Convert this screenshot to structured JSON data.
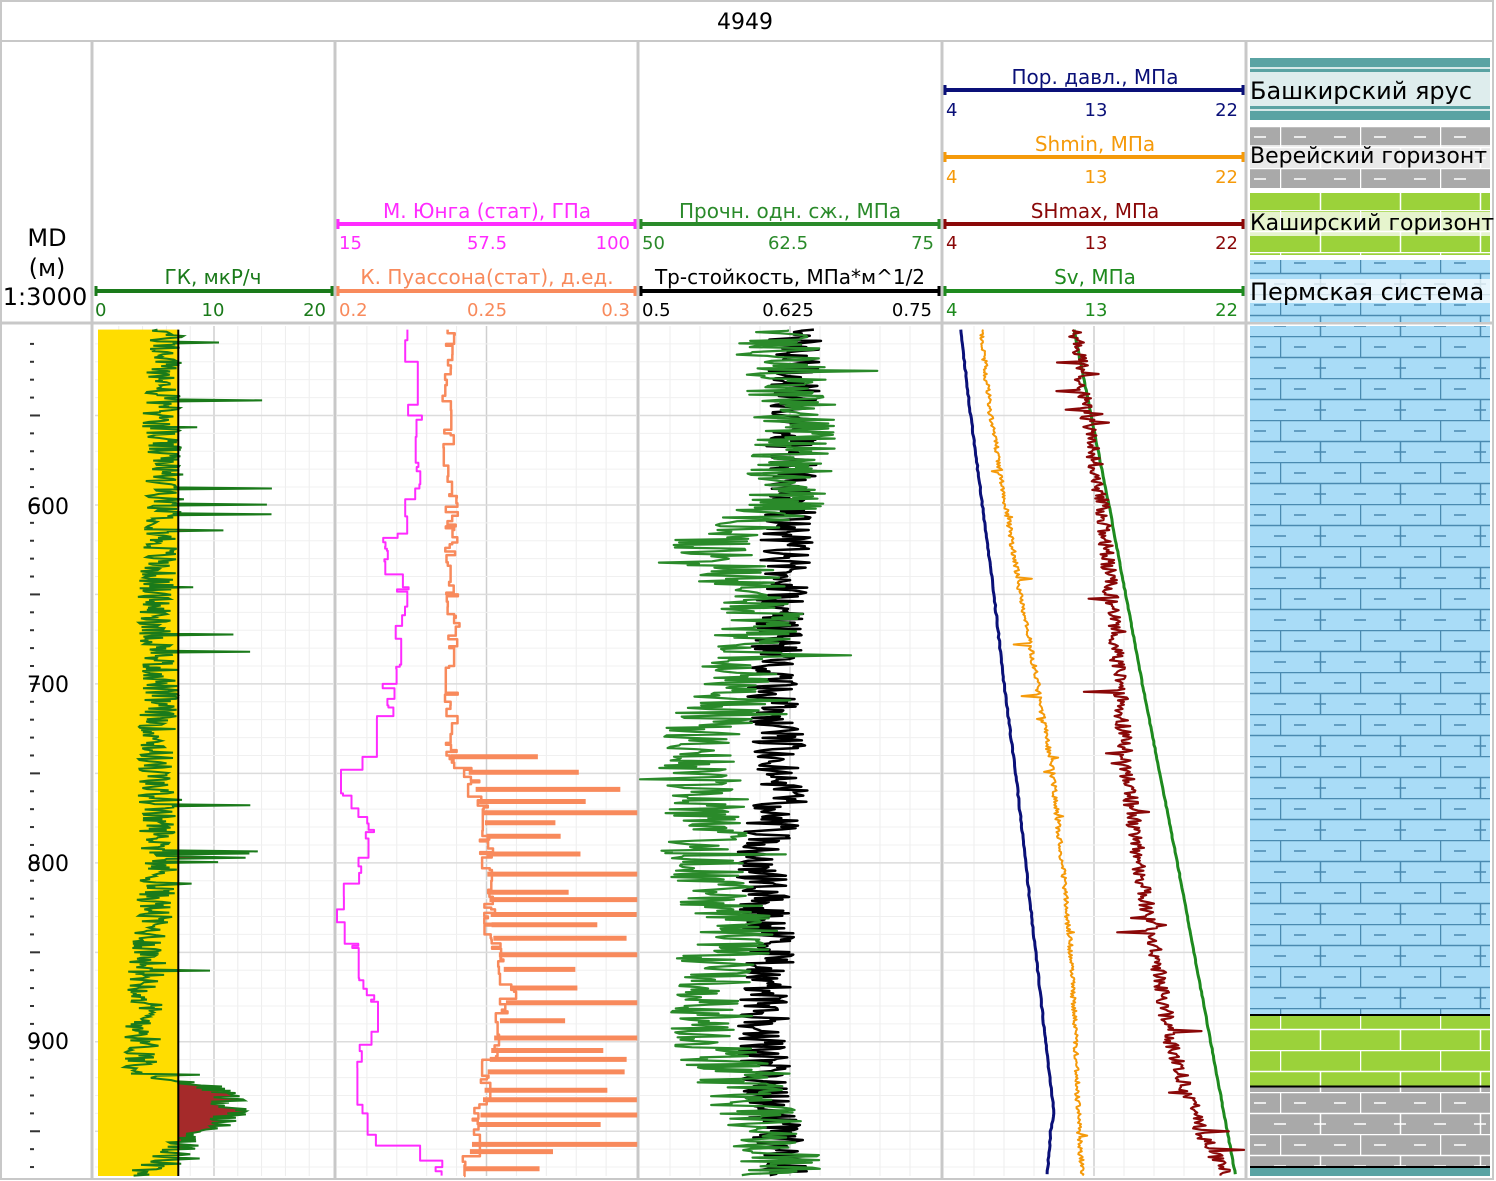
{
  "well": {
    "name": "4949"
  },
  "depth_track": {
    "label_line1": "MD",
    "label_line2": "(м)",
    "scale": "1:3000",
    "ticks": [
      "600",
      "700",
      "800",
      "900"
    ]
  },
  "colors": {
    "gk": "#1a7a1a",
    "young": "#ff2bff",
    "poisson": "#f88a5c",
    "ucs": "#2a8a2a",
    "kic": "#000000",
    "pore": "#0a1078",
    "shmin": "#f59a0a",
    "shmax": "#8a0808",
    "sv": "#1e8a1e",
    "sand_fill": "#ffdd00",
    "shale_fill": "#a52a2a"
  },
  "tracks": {
    "gk": {
      "curve": "ГК, мкР/ч",
      "ticks": [
        "0",
        "10",
        "20"
      ]
    },
    "elastic": {
      "young": {
        "curve": "М. Юнга (стат), ГПа",
        "ticks": [
          "15",
          "57.5",
          "100"
        ]
      },
      "poisson": {
        "curve": "К. Пуассона(стат), д.ед.",
        "ticks": [
          "0.2",
          "0.25",
          "0.3"
        ]
      }
    },
    "strength": {
      "ucs": {
        "curve": "Прочн. одн. сж., МПа",
        "ticks": [
          "50",
          "62.5",
          "75"
        ]
      },
      "kic": {
        "curve": "Тр-стойкость, МПа*м^1/2",
        "ticks": [
          "0.5",
          "0.625",
          "0.75"
        ]
      }
    },
    "stress": {
      "pore": {
        "curve": "Пор. давл., МПа",
        "ticks": [
          "4",
          "13",
          "22"
        ]
      },
      "shmin": {
        "curve": "Shmin, МПа",
        "ticks": [
          "4",
          "13",
          "22"
        ]
      },
      "shmax": {
        "curve": "SHmax, МПа",
        "ticks": [
          "4",
          "13",
          "22"
        ]
      },
      "sv": {
        "curve": "Sv, МПа",
        "ticks": [
          "4",
          "13",
          "22"
        ]
      }
    },
    "lithology": {
      "legend": [
        "Башкирский ярус",
        "Верейский горизонт",
        "Каширский горизонт",
        "Пермская система"
      ]
    }
  },
  "chart_data": {
    "type": "line",
    "depth_unit": "м",
    "depth_range": [
      500,
      975
    ],
    "gk_cutoff": 7,
    "series": [
      {
        "name": "ГК, мкР/ч",
        "xlim": [
          0,
          20
        ],
        "points": [
          [
            500,
            6
          ],
          [
            550,
            5.5
          ],
          [
            600,
            6
          ],
          [
            650,
            5
          ],
          [
            700,
            5.5
          ],
          [
            750,
            5
          ],
          [
            800,
            5.5
          ],
          [
            850,
            4.5
          ],
          [
            900,
            4
          ],
          [
            920,
            4
          ],
          [
            925,
            10
          ],
          [
            940,
            12
          ],
          [
            950,
            9
          ],
          [
            960,
            7
          ],
          [
            975,
            4
          ]
        ]
      },
      {
        "name": "М. Юнга (стат), ГПа",
        "xlim": [
          15,
          100
        ],
        "points": [
          [
            502,
            35
          ],
          [
            560,
            38
          ],
          [
            600,
            36
          ],
          [
            625,
            28
          ],
          [
            650,
            35
          ],
          [
            700,
            30
          ],
          [
            725,
            28
          ],
          [
            745,
            18
          ],
          [
            760,
            18
          ],
          [
            780,
            25
          ],
          [
            800,
            20
          ],
          [
            830,
            16
          ],
          [
            850,
            20
          ],
          [
            875,
            26
          ],
          [
            890,
            28
          ],
          [
            905,
            20
          ],
          [
            930,
            22
          ],
          [
            952,
            25
          ],
          [
            960,
            45
          ],
          [
            975,
            45
          ]
        ]
      },
      {
        "name": "К. Пуассона(стат), д.ед.",
        "xlim": [
          0.2,
          0.3
        ],
        "points": [
          [
            502,
            0.237
          ],
          [
            550,
            0.238
          ],
          [
            600,
            0.238
          ],
          [
            650,
            0.239
          ],
          [
            700,
            0.238
          ],
          [
            740,
            0.238
          ],
          [
            750,
            0.245
          ],
          [
            780,
            0.25
          ],
          [
            800,
            0.25
          ],
          [
            840,
            0.252
          ],
          [
            870,
            0.258
          ],
          [
            900,
            0.252
          ],
          [
            940,
            0.248
          ],
          [
            975,
            0.242
          ]
        ]
      },
      {
        "name": "Прочн. одн. сж., МПа",
        "xlim": [
          50,
          75
        ],
        "points": [
          [
            502,
            61
          ],
          [
            550,
            63
          ],
          [
            600,
            62
          ],
          [
            620,
            56
          ],
          [
            640,
            58
          ],
          [
            660,
            60
          ],
          [
            680,
            59
          ],
          [
            700,
            58
          ],
          [
            740,
            54
          ],
          [
            760,
            56
          ],
          [
            800,
            55
          ],
          [
            840,
            58
          ],
          [
            870,
            56
          ],
          [
            900,
            56
          ],
          [
            940,
            60
          ],
          [
            975,
            62
          ]
        ]
      },
      {
        "name": "Тр-стойкость, МПа*м^1/2",
        "xlim": [
          0.5,
          0.75
        ],
        "points": [
          [
            502,
            0.63
          ],
          [
            600,
            0.625
          ],
          [
            640,
            0.62
          ],
          [
            700,
            0.61
          ],
          [
            760,
            0.62
          ],
          [
            800,
            0.6
          ],
          [
            850,
            0.61
          ],
          [
            900,
            0.6
          ],
          [
            940,
            0.61
          ],
          [
            975,
            0.62
          ]
        ]
      },
      {
        "name": "Пор. давл., МПа",
        "xlim": [
          4,
          22
        ],
        "points": [
          [
            502,
            5
          ],
          [
            550,
            5.6
          ],
          [
            600,
            6.3
          ],
          [
            650,
            7
          ],
          [
            700,
            7.6
          ],
          [
            750,
            8.3
          ],
          [
            800,
            8.9
          ],
          [
            850,
            9.5
          ],
          [
            900,
            10.1
          ],
          [
            940,
            10.6
          ],
          [
            950,
            10.4
          ],
          [
            975,
            10.2
          ]
        ]
      },
      {
        "name": "Shmin, МПа",
        "xlim": [
          4,
          22
        ],
        "points": [
          [
            502,
            6.2
          ],
          [
            550,
            6.8
          ],
          [
            600,
            7.7
          ],
          [
            650,
            8.6
          ],
          [
            700,
            9.6
          ],
          [
            750,
            10.5
          ],
          [
            800,
            11.1
          ],
          [
            850,
            11.6
          ],
          [
            900,
            11.9
          ],
          [
            950,
            12.1
          ],
          [
            975,
            12.3
          ]
        ]
      },
      {
        "name": "SHmax, МПа",
        "xlim": [
          4,
          22
        ],
        "points": [
          [
            502,
            11.9
          ],
          [
            550,
            12.6
          ],
          [
            600,
            13.5
          ],
          [
            650,
            14
          ],
          [
            700,
            14.5
          ],
          [
            750,
            15
          ],
          [
            800,
            15.7
          ],
          [
            850,
            16.7
          ],
          [
            900,
            17.6
          ],
          [
            950,
            19.4
          ],
          [
            975,
            21
          ]
        ]
      },
      {
        "name": "Sv, МПа",
        "xlim": [
          4,
          22
        ],
        "points": [
          [
            502,
            11.8
          ],
          [
            600,
            13.9
          ],
          [
            700,
            15.9
          ],
          [
            800,
            18
          ],
          [
            900,
            20
          ],
          [
            975,
            21.5
          ]
        ]
      }
    ],
    "lithology_intervals": [
      {
        "top": 500,
        "base": 885,
        "unit": "Пермская система"
      },
      {
        "top": 885,
        "base": 925,
        "unit": "Каширский горизонт"
      },
      {
        "top": 925,
        "base": 970,
        "unit": "Верейский горизонт"
      },
      {
        "top": 970,
        "base": 975,
        "unit": "Башкирский ярус"
      }
    ]
  }
}
